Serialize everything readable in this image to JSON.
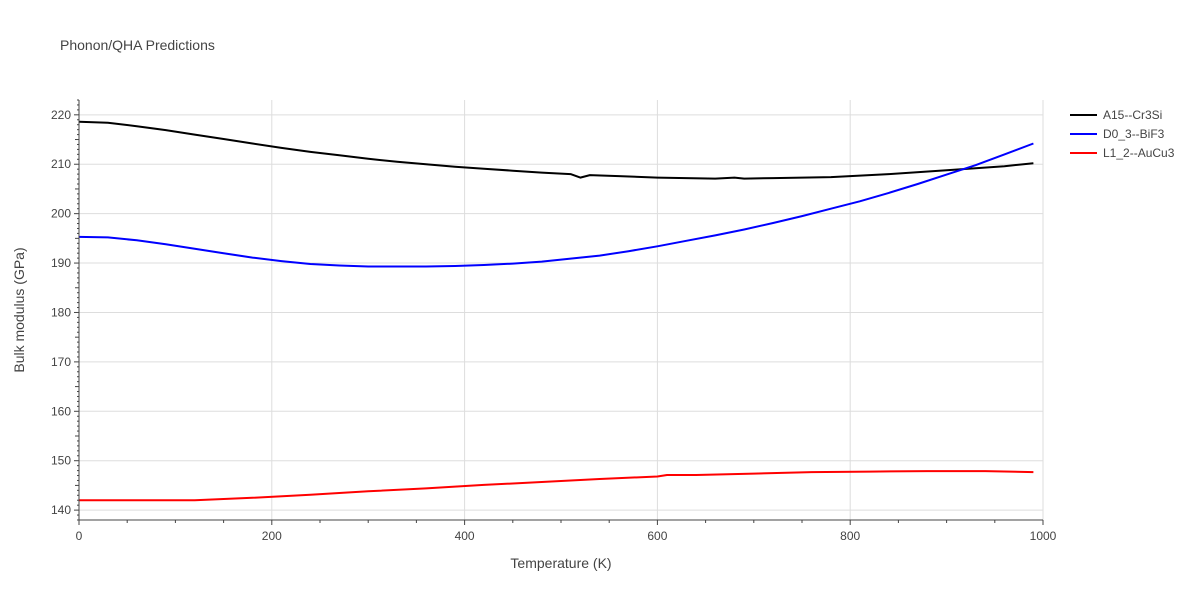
{
  "chart_data": {
    "type": "line",
    "title": "Phonon/QHA Predictions",
    "xlabel": "Temperature (K)",
    "ylabel": "Bulk modulus (GPa)",
    "xlim": [
      0,
      1000
    ],
    "ylim": [
      138,
      223
    ],
    "xticks": [
      0,
      200,
      400,
      600,
      800,
      1000
    ],
    "yticks": [
      140,
      150,
      160,
      170,
      180,
      190,
      200,
      210,
      220
    ],
    "grid": true,
    "legend_position": "top-right",
    "series": [
      {
        "name": "A15--Cr3Si",
        "color": "#000000",
        "x": [
          0,
          30,
          60,
          90,
          120,
          150,
          180,
          210,
          240,
          270,
          300,
          330,
          360,
          390,
          420,
          450,
          480,
          510,
          520,
          530,
          560,
          600,
          630,
          660,
          680,
          690,
          720,
          780,
          840,
          900,
          960,
          990
        ],
        "y": [
          218.6,
          218.4,
          217.7,
          216.9,
          216.0,
          215.1,
          214.2,
          213.3,
          212.5,
          211.8,
          211.1,
          210.5,
          210.0,
          209.5,
          209.1,
          208.7,
          208.3,
          208.0,
          207.3,
          207.8,
          207.6,
          207.3,
          207.2,
          207.1,
          207.3,
          207.1,
          207.2,
          207.4,
          208.0,
          208.8,
          209.6,
          210.2
        ]
      },
      {
        "name": "D0_3--BiF3",
        "color": "#0000ff",
        "x": [
          0,
          30,
          60,
          90,
          120,
          150,
          180,
          210,
          240,
          270,
          300,
          330,
          360,
          390,
          420,
          450,
          480,
          510,
          540,
          570,
          600,
          630,
          660,
          690,
          720,
          750,
          780,
          810,
          840,
          870,
          900,
          930,
          960,
          990
        ],
        "y": [
          195.3,
          195.2,
          194.6,
          193.8,
          192.9,
          192.0,
          191.1,
          190.4,
          189.8,
          189.5,
          189.3,
          189.3,
          189.3,
          189.4,
          189.6,
          189.9,
          190.3,
          190.9,
          191.5,
          192.4,
          193.4,
          194.5,
          195.6,
          196.8,
          198.1,
          199.5,
          201.0,
          202.5,
          204.2,
          206.0,
          207.9,
          209.8,
          212.0,
          214.2
        ]
      },
      {
        "name": "L1_2--AuCu3",
        "color": "#ff0000",
        "x": [
          0,
          60,
          120,
          180,
          240,
          300,
          360,
          420,
          480,
          540,
          600,
          610,
          640,
          700,
          760,
          820,
          880,
          940,
          990
        ],
        "y": [
          142.0,
          142.0,
          142.0,
          142.5,
          143.1,
          143.8,
          144.4,
          145.1,
          145.7,
          146.3,
          146.8,
          147.1,
          147.1,
          147.4,
          147.7,
          147.8,
          147.9,
          147.9,
          147.7
        ]
      }
    ]
  }
}
